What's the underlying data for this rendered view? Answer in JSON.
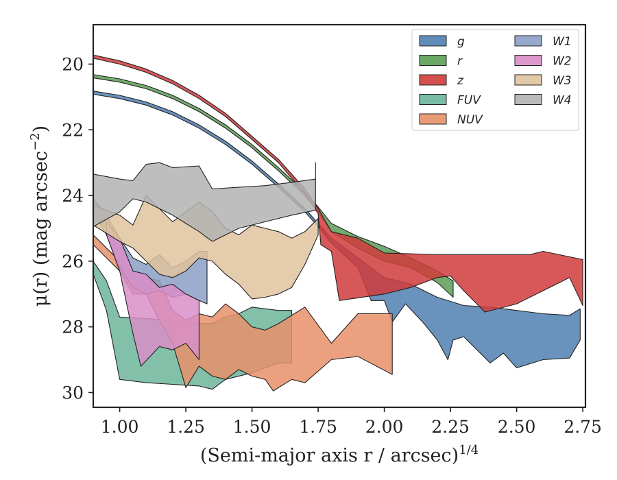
{
  "chart_data": {
    "type": "area",
    "title": "",
    "xlabel": "(Semi-major axis r / arcsec)",
    "xlabel_sup": "1/4",
    "ylabel": "μ(r) (mag arcsec",
    "ylabel_sup": "−2",
    "ylabel_tail": ")",
    "xlim": [
      0.9,
      2.76
    ],
    "ylim": [
      30.45,
      18.8
    ],
    "y_inverted": true,
    "grid": false,
    "legend_placement": "top-right",
    "legend_columns": 2,
    "xticks": [
      1.0,
      1.25,
      1.5,
      1.75,
      2.0,
      2.25,
      2.5,
      2.75
    ],
    "xtick_labels": [
      "1.00",
      "1.25",
      "1.50",
      "1.75",
      "2.00",
      "2.25",
      "2.50",
      "2.75"
    ],
    "yticks": [
      20,
      22,
      24,
      26,
      28,
      30
    ],
    "ytick_labels": [
      "20",
      "22",
      "24",
      "26",
      "28",
      "30"
    ],
    "series": [
      {
        "name": "g",
        "color": "#4f7fb0",
        "upper": [
          [
            0.9,
            20.82
          ],
          [
            1.0,
            20.95
          ],
          [
            1.1,
            21.15
          ],
          [
            1.2,
            21.45
          ],
          [
            1.3,
            21.85
          ],
          [
            1.4,
            22.35
          ],
          [
            1.5,
            22.95
          ],
          [
            1.6,
            23.65
          ],
          [
            1.7,
            24.4
          ],
          [
            1.75,
            24.85
          ],
          [
            1.8,
            25.3
          ],
          [
            1.9,
            25.9
          ],
          [
            2.0,
            26.5
          ],
          [
            2.1,
            26.7
          ],
          [
            2.2,
            27.1
          ],
          [
            2.3,
            27.35
          ],
          [
            2.4,
            27.4
          ],
          [
            2.5,
            27.5
          ],
          [
            2.6,
            27.6
          ],
          [
            2.7,
            27.65
          ],
          [
            2.74,
            27.45
          ]
        ],
        "lower": [
          [
            0.9,
            20.92
          ],
          [
            1.0,
            21.05
          ],
          [
            1.1,
            21.25
          ],
          [
            1.2,
            21.55
          ],
          [
            1.3,
            21.95
          ],
          [
            1.4,
            22.45
          ],
          [
            1.5,
            23.05
          ],
          [
            1.6,
            23.75
          ],
          [
            1.7,
            24.5
          ],
          [
            1.75,
            24.95
          ],
          [
            1.8,
            25.45
          ],
          [
            1.9,
            26.2
          ],
          [
            1.95,
            27.2
          ],
          [
            2.0,
            27.2
          ],
          [
            2.03,
            27.85
          ],
          [
            2.08,
            27.3
          ],
          [
            2.15,
            27.9
          ],
          [
            2.2,
            28.4
          ],
          [
            2.24,
            29.0
          ],
          [
            2.26,
            28.4
          ],
          [
            2.3,
            28.3
          ],
          [
            2.4,
            29.1
          ],
          [
            2.45,
            28.8
          ],
          [
            2.5,
            29.25
          ],
          [
            2.6,
            29.0
          ],
          [
            2.7,
            28.95
          ],
          [
            2.74,
            28.4
          ]
        ]
      },
      {
        "name": "r",
        "color": "#5a9e55",
        "upper": [
          [
            0.9,
            20.32
          ],
          [
            1.0,
            20.45
          ],
          [
            1.1,
            20.65
          ],
          [
            1.2,
            20.95
          ],
          [
            1.3,
            21.35
          ],
          [
            1.4,
            21.85
          ],
          [
            1.5,
            22.45
          ],
          [
            1.6,
            23.15
          ],
          [
            1.7,
            23.9
          ],
          [
            1.75,
            24.35
          ],
          [
            1.8,
            24.85
          ],
          [
            1.9,
            25.25
          ],
          [
            2.0,
            25.55
          ],
          [
            2.1,
            25.9
          ],
          [
            2.2,
            26.3
          ],
          [
            2.26,
            26.6
          ]
        ],
        "lower": [
          [
            0.9,
            20.42
          ],
          [
            1.0,
            20.55
          ],
          [
            1.1,
            20.75
          ],
          [
            1.2,
            21.05
          ],
          [
            1.3,
            21.45
          ],
          [
            1.4,
            21.95
          ],
          [
            1.5,
            22.55
          ],
          [
            1.6,
            23.25
          ],
          [
            1.7,
            24.0
          ],
          [
            1.75,
            24.5
          ],
          [
            1.8,
            25.1
          ],
          [
            1.9,
            25.6
          ],
          [
            2.0,
            26.0
          ],
          [
            2.1,
            26.2
          ],
          [
            2.2,
            26.65
          ],
          [
            2.26,
            27.1
          ]
        ]
      },
      {
        "name": "z",
        "color": "#d03b3b",
        "upper": [
          [
            0.9,
            19.72
          ],
          [
            1.0,
            19.9
          ],
          [
            1.1,
            20.15
          ],
          [
            1.2,
            20.5
          ],
          [
            1.3,
            20.95
          ],
          [
            1.4,
            21.5
          ],
          [
            1.5,
            22.2
          ],
          [
            1.6,
            22.9
          ],
          [
            1.7,
            23.8
          ],
          [
            1.75,
            24.4
          ],
          [
            1.8,
            25.1
          ],
          [
            1.9,
            25.3
          ],
          [
            2.0,
            25.75
          ],
          [
            2.2,
            25.8
          ],
          [
            2.4,
            25.8
          ],
          [
            2.55,
            25.8
          ],
          [
            2.6,
            25.7
          ],
          [
            2.75,
            25.95
          ]
        ],
        "lower": [
          [
            0.9,
            19.82
          ],
          [
            1.0,
            20.0
          ],
          [
            1.1,
            20.25
          ],
          [
            1.2,
            20.6
          ],
          [
            1.3,
            21.05
          ],
          [
            1.4,
            21.6
          ],
          [
            1.5,
            22.3
          ],
          [
            1.6,
            23.0
          ],
          [
            1.7,
            23.95
          ],
          [
            1.75,
            24.55
          ],
          [
            1.76,
            25.5
          ],
          [
            1.8,
            25.7
          ],
          [
            1.83,
            27.2
          ],
          [
            2.0,
            27.0
          ],
          [
            2.1,
            26.8
          ],
          [
            2.2,
            26.5
          ],
          [
            2.25,
            26.45
          ],
          [
            2.3,
            26.9
          ],
          [
            2.38,
            27.55
          ],
          [
            2.5,
            27.3
          ],
          [
            2.6,
            26.9
          ],
          [
            2.7,
            26.5
          ],
          [
            2.75,
            27.35
          ]
        ]
      },
      {
        "name": "FUV",
        "color": "#6cb59a",
        "upper": [
          [
            0.9,
            26.0
          ],
          [
            0.95,
            26.6
          ],
          [
            1.0,
            27.7
          ],
          [
            1.1,
            27.75
          ],
          [
            1.2,
            27.8
          ],
          [
            1.3,
            27.9
          ],
          [
            1.35,
            27.9
          ],
          [
            1.4,
            27.7
          ],
          [
            1.45,
            27.6
          ],
          [
            1.5,
            27.4
          ],
          [
            1.55,
            27.45
          ],
          [
            1.6,
            27.5
          ],
          [
            1.65,
            27.5
          ]
        ],
        "lower": [
          [
            0.9,
            26.4
          ],
          [
            0.95,
            27.5
          ],
          [
            1.0,
            29.6
          ],
          [
            1.1,
            29.7
          ],
          [
            1.2,
            29.75
          ],
          [
            1.3,
            29.8
          ],
          [
            1.35,
            29.9
          ],
          [
            1.4,
            29.6
          ],
          [
            1.5,
            29.4
          ],
          [
            1.6,
            29.1
          ],
          [
            1.65,
            29.1
          ]
        ]
      },
      {
        "name": "NUV",
        "color": "#e8916a",
        "upper": [
          [
            0.9,
            25.2
          ],
          [
            0.95,
            25.6
          ],
          [
            1.0,
            26.0
          ],
          [
            1.05,
            26.8
          ],
          [
            1.1,
            26.5
          ],
          [
            1.15,
            26.6
          ],
          [
            1.2,
            27.5
          ],
          [
            1.25,
            27.8
          ],
          [
            1.3,
            27.6
          ],
          [
            1.35,
            27.7
          ],
          [
            1.4,
            27.3
          ],
          [
            1.45,
            27.6
          ],
          [
            1.5,
            28.0
          ],
          [
            1.55,
            28.1
          ],
          [
            1.6,
            27.9
          ],
          [
            1.7,
            27.4
          ],
          [
            1.8,
            28.5
          ],
          [
            1.9,
            27.6
          ],
          [
            2.03,
            27.6
          ]
        ],
        "lower": [
          [
            0.9,
            25.5
          ],
          [
            0.95,
            25.9
          ],
          [
            1.0,
            26.3
          ],
          [
            1.05,
            27.0
          ],
          [
            1.1,
            27.0
          ],
          [
            1.15,
            27.8
          ],
          [
            1.2,
            28.5
          ],
          [
            1.25,
            29.85
          ],
          [
            1.3,
            29.2
          ],
          [
            1.35,
            29.5
          ],
          [
            1.4,
            29.6
          ],
          [
            1.45,
            29.3
          ],
          [
            1.5,
            29.5
          ],
          [
            1.55,
            29.6
          ],
          [
            1.58,
            29.95
          ],
          [
            1.65,
            29.6
          ],
          [
            1.7,
            29.7
          ],
          [
            1.8,
            29.0
          ],
          [
            1.9,
            28.9
          ],
          [
            2.03,
            29.45
          ]
        ]
      },
      {
        "name": "W1",
        "color": "#8c9fc6",
        "upper": [
          [
            0.9,
            24.1
          ],
          [
            0.95,
            24.6
          ],
          [
            1.0,
            25.3
          ],
          [
            1.05,
            25.9
          ],
          [
            1.1,
            26.1
          ],
          [
            1.15,
            25.8
          ],
          [
            1.2,
            26.2
          ],
          [
            1.25,
            26.0
          ],
          [
            1.3,
            25.7
          ],
          [
            1.33,
            25.7
          ]
        ],
        "lower": [
          [
            0.9,
            24.5
          ],
          [
            0.95,
            25.2
          ],
          [
            1.0,
            26.2
          ],
          [
            1.05,
            26.8
          ],
          [
            1.1,
            27.0
          ],
          [
            1.15,
            26.9
          ],
          [
            1.2,
            27.1
          ],
          [
            1.25,
            27.0
          ],
          [
            1.3,
            27.2
          ],
          [
            1.33,
            27.3
          ]
        ]
      },
      {
        "name": "W2",
        "color": "#d98ec8",
        "upper": [
          [
            0.95,
            24.8
          ],
          [
            1.0,
            25.3
          ],
          [
            1.05,
            26.3
          ],
          [
            1.1,
            26.4
          ],
          [
            1.15,
            26.8
          ],
          [
            1.2,
            26.7
          ],
          [
            1.25,
            27.0
          ],
          [
            1.3,
            27.2
          ]
        ],
        "lower": [
          [
            0.95,
            25.2
          ],
          [
            1.0,
            26.3
          ],
          [
            1.05,
            28.2
          ],
          [
            1.08,
            29.2
          ],
          [
            1.15,
            28.6
          ],
          [
            1.2,
            28.7
          ],
          [
            1.25,
            28.5
          ],
          [
            1.3,
            29.0
          ]
        ]
      },
      {
        "name": "W3",
        "color": "#dfc39e",
        "upper": [
          [
            0.9,
            24.3
          ],
          [
            1.0,
            24.6
          ],
          [
            1.05,
            24.9
          ],
          [
            1.1,
            24.0
          ],
          [
            1.2,
            24.8
          ],
          [
            1.3,
            24.2
          ],
          [
            1.35,
            24.5
          ],
          [
            1.4,
            25.0
          ],
          [
            1.45,
            25.2
          ],
          [
            1.5,
            24.9
          ],
          [
            1.55,
            25.0
          ],
          [
            1.6,
            25.1
          ],
          [
            1.65,
            25.3
          ],
          [
            1.7,
            25.1
          ],
          [
            1.75,
            24.7
          ]
        ],
        "lower": [
          [
            0.9,
            24.9
          ],
          [
            1.0,
            25.4
          ],
          [
            1.05,
            25.6
          ],
          [
            1.1,
            26.0
          ],
          [
            1.15,
            26.4
          ],
          [
            1.2,
            26.5
          ],
          [
            1.25,
            26.3
          ],
          [
            1.3,
            25.9
          ],
          [
            1.35,
            26.0
          ],
          [
            1.4,
            26.4
          ],
          [
            1.45,
            26.7
          ],
          [
            1.5,
            27.15
          ],
          [
            1.55,
            27.1
          ],
          [
            1.6,
            27.0
          ],
          [
            1.65,
            26.8
          ],
          [
            1.7,
            26.1
          ],
          [
            1.75,
            25.2
          ]
        ]
      },
      {
        "name": "W4",
        "color": "#b3b3b3",
        "upper": [
          [
            0.9,
            23.35
          ],
          [
            1.0,
            23.5
          ],
          [
            1.05,
            23.55
          ],
          [
            1.1,
            23.05
          ],
          [
            1.15,
            23.0
          ],
          [
            1.2,
            23.15
          ],
          [
            1.3,
            23.1
          ],
          [
            1.35,
            23.8
          ],
          [
            1.45,
            23.75
          ],
          [
            1.55,
            23.7
          ],
          [
            1.65,
            23.6
          ],
          [
            1.74,
            23.5
          ],
          [
            1.74,
            23.0
          ]
        ],
        "lower": [
          [
            0.9,
            24.95
          ],
          [
            1.0,
            24.5
          ],
          [
            1.05,
            24.1
          ],
          [
            1.1,
            24.2
          ],
          [
            1.15,
            24.4
          ],
          [
            1.2,
            24.6
          ],
          [
            1.3,
            25.1
          ],
          [
            1.35,
            25.4
          ],
          [
            1.45,
            25.0
          ],
          [
            1.55,
            24.8
          ],
          [
            1.65,
            24.6
          ],
          [
            1.74,
            24.45
          ]
        ]
      }
    ]
  }
}
